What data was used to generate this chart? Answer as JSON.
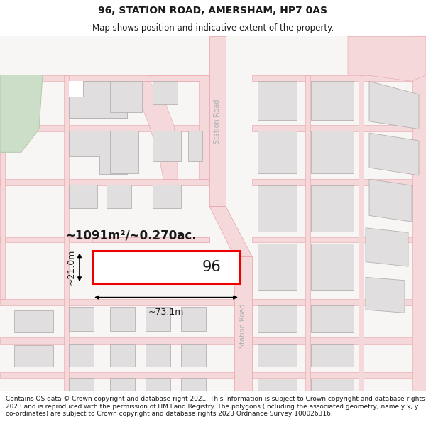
{
  "title_line1": "96, STATION ROAD, AMERSHAM, HP7 0AS",
  "title_line2": "Map shows position and indicative extent of the property.",
  "footer_text": "Contains OS data © Crown copyright and database right 2021. This information is subject to Crown copyright and database rights 2023 and is reproduced with the permission of HM Land Registry. The polygons (including the associated geometry, namely x, y co-ordinates) are subject to Crown copyright and database rights 2023 Ordnance Survey 100026316.",
  "background_color": "#ffffff",
  "map_bg": "#fafafa",
  "road_color": "#f5d8da",
  "road_edge": "#e8a0a8",
  "building_fill": "#e0dede",
  "building_stroke": "#b8b0b0",
  "highlight_color": "#ff0000",
  "text_color": "#1a1a1a",
  "road_text_color": "#b0b0b0",
  "green_fill": "#ccdec8",
  "green_edge": "#a8c8a0",
  "area_label": "~1091m²/~0.270ac.",
  "width_label": "~73.1m",
  "height_label": "~21.0m",
  "plot_number": "96",
  "road_label": "Station Road",
  "title_fontsize": 10,
  "subtitle_fontsize": 8.5,
  "footer_fontsize": 6.5
}
